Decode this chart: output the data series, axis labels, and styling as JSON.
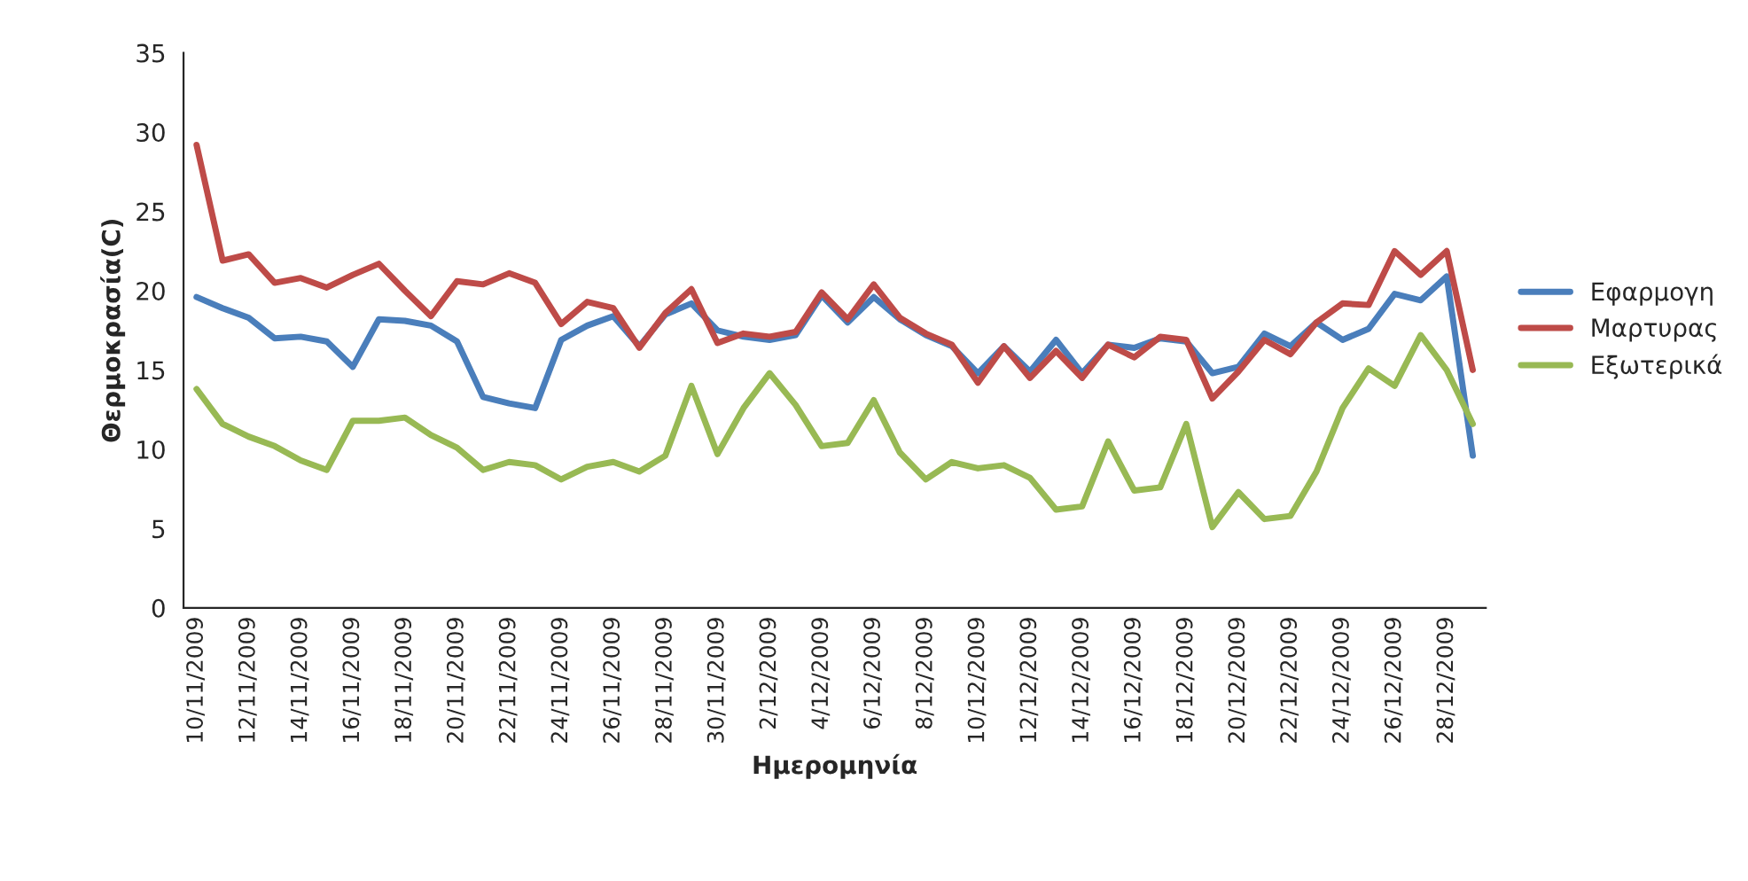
{
  "chart_data": {
    "type": "line",
    "xlabel": "Ημερομηνία",
    "ylabel": "Θερμοκρασία(C)",
    "categories": [
      "10/11/2009",
      null,
      "12/11/2009",
      null,
      "14/11/2009",
      null,
      "16/11/2009",
      null,
      "18/11/2009",
      null,
      "20/11/2009",
      null,
      "22/11/2009",
      null,
      "24/11/2009",
      null,
      "26/11/2009",
      null,
      "28/11/2009",
      null,
      "30/11/2009",
      null,
      "2/12/2009",
      null,
      "4/12/2009",
      null,
      "6/12/2009",
      null,
      "8/12/2009",
      null,
      "10/12/2009",
      null,
      "12/12/2009",
      null,
      "14/12/2009",
      null,
      "16/12/2009",
      null,
      "18/12/2009",
      null,
      "20/12/2009",
      null,
      "22/12/2009",
      null,
      "24/12/2009",
      null,
      "26/12/2009",
      null,
      "28/12/2009",
      null
    ],
    "series": [
      {
        "name": "Εφαρμογη",
        "color": "#4a7ebb",
        "values": [
          19.6,
          18.9,
          18.3,
          17.0,
          17.1,
          16.8,
          15.2,
          18.2,
          18.1,
          17.8,
          16.8,
          13.3,
          12.9,
          12.6,
          16.9,
          17.8,
          18.4,
          16.5,
          18.5,
          19.2,
          17.5,
          17.1,
          16.9,
          17.2,
          19.7,
          18.0,
          19.6,
          18.2,
          17.2,
          16.5,
          14.8,
          16.5,
          14.9,
          16.9,
          14.8,
          16.6,
          16.4,
          17.0,
          16.8,
          14.8,
          15.2,
          17.3,
          16.5,
          18.0,
          16.9,
          17.6,
          19.8,
          19.4,
          20.9,
          9.6
        ]
      },
      {
        "name": "Μαρτυρας",
        "color": "#be4b48",
        "values": [
          29.2,
          21.9,
          22.3,
          20.5,
          20.8,
          20.2,
          21.0,
          21.7,
          20.0,
          18.4,
          20.6,
          20.4,
          21.1,
          20.5,
          17.9,
          19.3,
          18.9,
          16.4,
          18.6,
          20.1,
          16.7,
          17.3,
          17.1,
          17.4,
          19.9,
          18.2,
          20.4,
          18.3,
          17.3,
          16.6,
          14.2,
          16.5,
          14.5,
          16.2,
          14.5,
          16.6,
          15.8,
          17.1,
          16.9,
          13.2,
          14.9,
          16.9,
          16.0,
          18.0,
          19.2,
          19.1,
          22.5,
          21.0,
          22.5,
          15.0
        ]
      },
      {
        "name": "Εξωτερικά",
        "color": "#98b954",
        "values": [
          13.8,
          11.6,
          10.8,
          10.2,
          9.3,
          8.7,
          11.8,
          11.8,
          12.0,
          10.9,
          10.1,
          8.7,
          9.2,
          9.0,
          8.1,
          8.9,
          9.2,
          8.6,
          9.6,
          14.0,
          9.7,
          12.6,
          14.8,
          12.8,
          10.2,
          10.4,
          13.1,
          9.8,
          8.1,
          9.2,
          8.8,
          9.0,
          8.2,
          6.2,
          6.4,
          10.5,
          7.4,
          7.6,
          11.6,
          5.1,
          7.3,
          5.6,
          5.8,
          8.6,
          12.6,
          15.1,
          14.0,
          17.2,
          15.0,
          11.6
        ]
      }
    ],
    "ylim": [
      0,
      35
    ],
    "yticks": [
      0,
      5,
      10,
      15,
      20,
      25,
      30,
      35
    ],
    "grid": false,
    "legend": "right",
    "marker": "none",
    "line_style": "solid"
  }
}
